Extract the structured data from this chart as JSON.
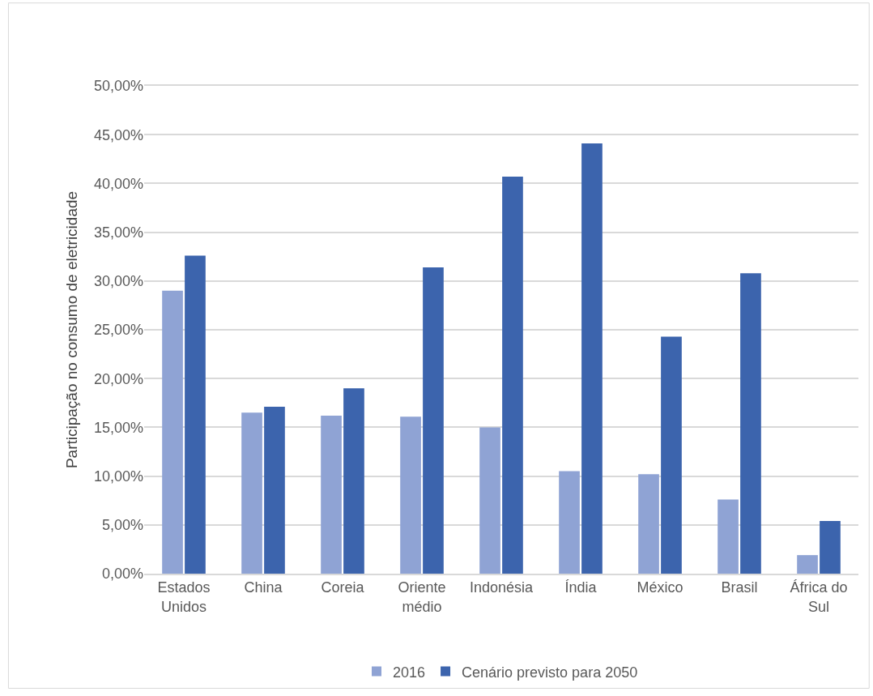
{
  "chart_data": {
    "type": "bar",
    "ylabel": "Participação no consumo de eletricidade",
    "categories": [
      "Estados Unidos",
      "China",
      "Coreia",
      "Oriente médio",
      "Indonésia",
      "Índia",
      "México",
      "Brasil",
      "África do Sul"
    ],
    "series": [
      {
        "name": "2016",
        "color": "#8fa3d4",
        "values": [
          29.0,
          16.5,
          16.2,
          16.1,
          15.0,
          10.5,
          10.2,
          7.6,
          1.9
        ]
      },
      {
        "name": "Cenário previsto para 2050",
        "color": "#3c64ad",
        "values": [
          32.6,
          17.1,
          19.0,
          31.4,
          40.7,
          44.1,
          24.3,
          30.8,
          5.4
        ]
      }
    ],
    "ylim": [
      0,
      50
    ],
    "yticks": [
      {
        "value": 0,
        "label": "0,00%"
      },
      {
        "value": 5,
        "label": "5,00%"
      },
      {
        "value": 10,
        "label": "10,00%"
      },
      {
        "value": 15,
        "label": "15,00%"
      },
      {
        "value": 20,
        "label": "20,00%"
      },
      {
        "value": 25,
        "label": "25,00%"
      },
      {
        "value": 30,
        "label": "30,00%"
      },
      {
        "value": 35,
        "label": "35,00%"
      },
      {
        "value": 40,
        "label": "40,00%"
      },
      {
        "value": 45,
        "label": "45,00%"
      },
      {
        "value": 50,
        "label": "50,00%"
      }
    ],
    "grid": "y",
    "legend": "bottom"
  }
}
